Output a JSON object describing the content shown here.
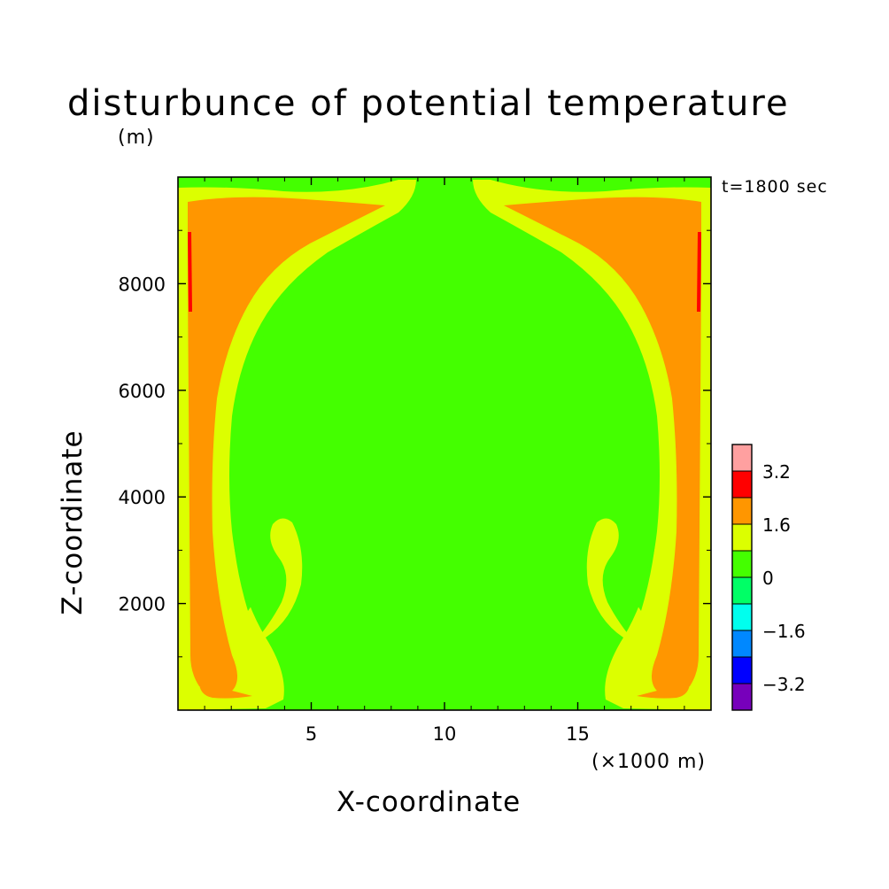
{
  "page": {
    "title": "disturbunce of potential temperature",
    "units": "(m)",
    "time_label": "t=1800 sec",
    "x_unit_label": "(×1000 m)"
  },
  "colors": {
    "bg": "#44ff00",
    "pos1": "#dcff00",
    "pos2": "#ff9600",
    "pos3": "#ff0000",
    "pos4": "#ffa0a0",
    "neg1": "#00ff66",
    "neg2": "#00ffee",
    "neg3": "#0088ff",
    "neg4": "#0000ff",
    "neg5": "#7700bb"
  },
  "chart_data": {
    "type": "heatmap",
    "title": "disturbunce of potential temperature",
    "xlabel": "X-coordinate",
    "ylabel": "Z-coordinate",
    "x_unit": "(×1000 m)",
    "xlim": [
      0,
      20
    ],
    "ylim": [
      0,
      10000
    ],
    "x_ticks": [
      5,
      10,
      15
    ],
    "y_ticks": [
      2000,
      4000,
      6000,
      8000
    ],
    "colorbar": {
      "levels": [
        -4,
        -3.2,
        -2.4,
        -1.6,
        -0.8,
        0,
        0.8,
        1.6,
        2.4,
        3.2,
        4
      ],
      "labels": [
        "3.2",
        "1.6",
        "0",
        "−1.6",
        "−3.2"
      ],
      "label_values": [
        3.2,
        1.6,
        0,
        -1.6,
        -3.2
      ],
      "colors_bottom_to_top": [
        "#7700bb",
        "#0000ff",
        "#0088ff",
        "#00ffee",
        "#00ff66",
        "#44ff00",
        "#dcff00",
        "#ff9600",
        "#ff0000",
        "#ffa0a0"
      ]
    },
    "field_description": "symmetric warm anomaly along lateral walls and top corners; near-zero interior"
  }
}
